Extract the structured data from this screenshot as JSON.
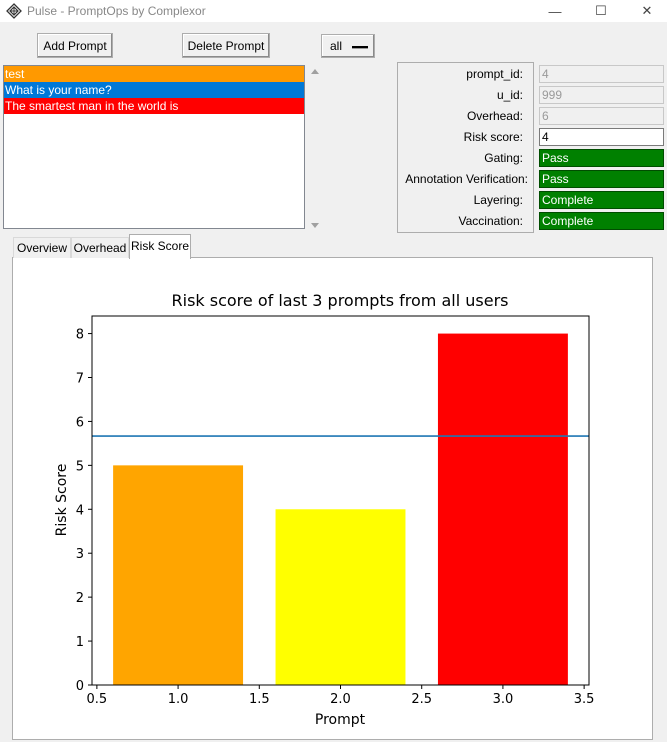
{
  "window": {
    "title": "Pulse - PromptOps by Complexor",
    "minimize_glyph": "—",
    "maximize_glyph": "☐",
    "close_glyph": "✕"
  },
  "toolbar": {
    "add_label": "Add Prompt",
    "delete_label": "Delete Prompt",
    "filter_value": "all"
  },
  "prompts": [
    {
      "text": "test",
      "color": "#ff9900",
      "text_color": "#ffffff"
    },
    {
      "text": "What is your name?",
      "color": "#0078d7",
      "text_color": "#ffffff"
    },
    {
      "text": "The smartest man in the world is",
      "color": "#ff0000",
      "text_color": "#ffffff"
    }
  ],
  "details": {
    "prompt_id": {
      "label": "prompt_id:",
      "value": "4"
    },
    "u_id": {
      "label": "u_id:",
      "value": "999"
    },
    "overhead": {
      "label": "Overhead:",
      "value": "6"
    },
    "risk_score": {
      "label": "Risk score:",
      "value": "4"
    },
    "gating": {
      "label": "Gating:",
      "value": "Pass"
    },
    "annotation": {
      "label": "Annotation Verification:",
      "value": "Pass"
    },
    "layering": {
      "label": "Layering:",
      "value": "Complete"
    },
    "vaccination": {
      "label": "Vaccination:",
      "value": "Complete"
    }
  },
  "tabs": [
    {
      "label": "Overview"
    },
    {
      "label": "Overhead"
    },
    {
      "label": "Risk Score"
    }
  ],
  "colors": {
    "status_pass": "#008000",
    "selection": "#0078d7"
  },
  "chart_data": {
    "type": "bar",
    "title": "Risk score of last 3 prompts from all users",
    "xlabel": "Prompt",
    "ylabel": "Risk Score",
    "x": [
      1,
      2,
      3
    ],
    "values": [
      5,
      4,
      8
    ],
    "colors": [
      "#ffa500",
      "#ffff00",
      "#ff0000"
    ],
    "bar_width": 0.8,
    "xlim": [
      0.47,
      3.53
    ],
    "ylim": [
      0,
      8.4
    ],
    "xticks": [
      "0.5",
      "1.0",
      "1.5",
      "2.0",
      "2.5",
      "3.0",
      "3.5"
    ],
    "yticks": [
      "0",
      "1",
      "2",
      "3",
      "4",
      "5",
      "6",
      "7",
      "8"
    ],
    "mean_line": {
      "value": 5.6667,
      "color": "#1f77b4"
    },
    "grid": false,
    "legend": "none"
  }
}
